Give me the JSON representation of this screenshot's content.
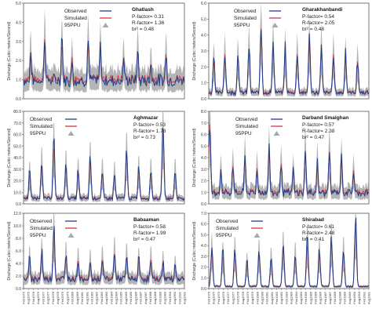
{
  "legend_labels": {
    "observed": "Observed",
    "simulated": "Simulated",
    "ppu": "95PPU"
  },
  "colors": {
    "observed": "#1f3e8c",
    "simulated": "#d9363e",
    "ppu": "#a8a8a8",
    "frame": "#555555"
  },
  "x_tick_labels": [
    "Feb1975",
    "Aug1975",
    "Feb1976",
    "Aug1976",
    "Feb1977",
    "Aug1977",
    "Feb1978",
    "Aug1978",
    "Feb1979",
    "Aug1979",
    "Feb1980",
    "Aug1980",
    "Feb1981",
    "Aug1981",
    "Feb1982",
    "Aug1982",
    "Feb1983",
    "Aug1983",
    "Feb1984",
    "Aug1984",
    "Feb1985",
    "Aug1985",
    "Feb1986",
    "Aug1986",
    "Feb1987",
    "Aug1987",
    "Feb1988",
    "Aug1988",
    "Feb1989",
    "Aug1989",
    "Feb1990",
    "Aug1990",
    "Feb1991",
    "Aug1991"
  ],
  "chart_data": [
    {
      "type": "line",
      "station": "Ghatlash",
      "stats": [
        "P-factor= 0.31",
        "R-factor= 1.36",
        "br² = 0.48"
      ],
      "ylabel": "Discharge (Cubic meters/Second)",
      "ylim": [
        0,
        5
      ],
      "yticks": [
        "0.0",
        "1.0",
        "2.0",
        "3.0",
        "4.0",
        "5.0"
      ],
      "peak_months": [
        7,
        21,
        38,
        48,
        64,
        76,
        99,
        113,
        126,
        141
      ],
      "peak_values": [
        2.5,
        3.3,
        3.0,
        2.2,
        3.1,
        2.8,
        2.2,
        2.6,
        1.9,
        2.4
      ],
      "base_value": 1.0,
      "series": [
        {
          "name": "Observed"
        },
        {
          "name": "Simulated"
        },
        {
          "name": "95PPU"
        }
      ]
    },
    {
      "type": "line",
      "station": "Gharakhanbandi",
      "stats": [
        "P-factor= 0.54",
        "R-factor= 2.05",
        "br² = 0.48"
      ],
      "ylabel": "Discharge (Cubic meters/Second)",
      "ylim": [
        0,
        6
      ],
      "yticks": [
        "0.0",
        "1.0",
        "2.0",
        "3.0",
        "4.0",
        "5.0",
        "6.0"
      ],
      "peak_months": [
        5,
        16,
        29,
        40,
        52,
        64,
        76,
        88,
        100,
        112,
        124,
        136,
        148
      ],
      "peak_values": [
        2.6,
        3.0,
        2.8,
        3.4,
        4.8,
        3.6,
        3.2,
        3.0,
        3.8,
        3.4,
        3.0,
        2.8,
        2.5
      ],
      "base_value": 0.4,
      "series": [
        {
          "name": "Observed"
        },
        {
          "name": "Simulated"
        },
        {
          "name": "95PPU"
        }
      ]
    },
    {
      "type": "line",
      "station": "Aghmazar",
      "stats": [
        "P-factor= 0.53",
        "R-factor= 1.78",
        "br² = 0.73"
      ],
      "ylabel": "Discharge (Cubic meters/Second)",
      "ylim": [
        0,
        80
      ],
      "yticks": [
        "0.0",
        "10.0",
        "20.0",
        "30.0",
        "40.0",
        "50.0",
        "60.0",
        "70.0",
        "80.0"
      ],
      "peak_months": [
        6,
        18,
        30,
        42,
        54,
        66,
        78,
        90,
        102,
        114,
        126,
        138,
        150
      ],
      "peak_values": [
        28,
        38,
        55,
        36,
        30,
        42,
        30,
        28,
        48,
        32,
        30,
        72,
        30
      ],
      "base_value": 5,
      "series": [
        {
          "name": "Observed"
        },
        {
          "name": "Simulated"
        },
        {
          "name": "95PPU"
        }
      ]
    },
    {
      "type": "line",
      "station": "Darband Smalghan",
      "stats": [
        "P-factor= 0.57",
        "R-factor= 2.38",
        "br² = 0.47"
      ],
      "ylabel": "Discharge (Cubic meters/Second)",
      "ylim": [
        0,
        8
      ],
      "yticks": [
        "0.0",
        "1.0",
        "2.0",
        "3.0",
        "4.0",
        "5.0",
        "6.0",
        "7.0",
        "8.0"
      ],
      "peak_months": [
        1,
        12,
        24,
        36,
        48,
        60,
        72,
        84,
        96,
        108,
        120,
        132,
        144
      ],
      "peak_values": [
        7.6,
        3.0,
        3.4,
        4.2,
        3.2,
        4.8,
        3.6,
        3.0,
        4.8,
        3.8,
        4.8,
        4.0,
        3.0
      ],
      "base_value": 1.0,
      "series": [
        {
          "name": "Observed"
        },
        {
          "name": "Simulated"
        },
        {
          "name": "95PPU"
        }
      ]
    },
    {
      "type": "line",
      "station": "Babaaman",
      "stats": [
        "P-factor= 0.58",
        "R-factor= 1.99",
        "br² = 0.47"
      ],
      "ylabel": "Discharge (Cubic meters/Second)",
      "ylim": [
        0,
        12
      ],
      "yticks": [
        "0.0",
        "2.0",
        "4.0",
        "6.0",
        "8.0",
        "10.0",
        "12.0"
      ],
      "peak_months": [
        6,
        18,
        30,
        42,
        54,
        66,
        78,
        90,
        102,
        114,
        126,
        138,
        150
      ],
      "peak_values": [
        5.0,
        6.0,
        10.2,
        5.6,
        4.8,
        4.6,
        5.0,
        6.2,
        5.4,
        4.8,
        5.0,
        4.4,
        3.8
      ],
      "base_value": 1.6,
      "series": [
        {
          "name": "Observed"
        },
        {
          "name": "Simulated"
        },
        {
          "name": "95PPU"
        }
      ]
    },
    {
      "type": "line",
      "station": "Shirabad",
      "stats": [
        "P-factor= 0.61",
        "R-factor= 2.48",
        "br² = 0.41"
      ],
      "ylabel": "Discharge (Cubic meters/Second)",
      "ylim": [
        0,
        7
      ],
      "yticks": [
        "0.0",
        "1.0",
        "2.0",
        "3.0",
        "4.0",
        "5.0",
        "6.0",
        "7.0"
      ],
      "peak_months": [
        3,
        14,
        26,
        38,
        50,
        62,
        74,
        86,
        98,
        110,
        122,
        134,
        146
      ],
      "peak_values": [
        4.0,
        3.4,
        3.8,
        2.6,
        3.6,
        3.0,
        4.2,
        3.4,
        4.6,
        3.6,
        4.8,
        3.8,
        6.6
      ],
      "base_value": 0.2,
      "series": [
        {
          "name": "Observed"
        },
        {
          "name": "Simulated"
        },
        {
          "name": "95PPU"
        }
      ]
    }
  ]
}
